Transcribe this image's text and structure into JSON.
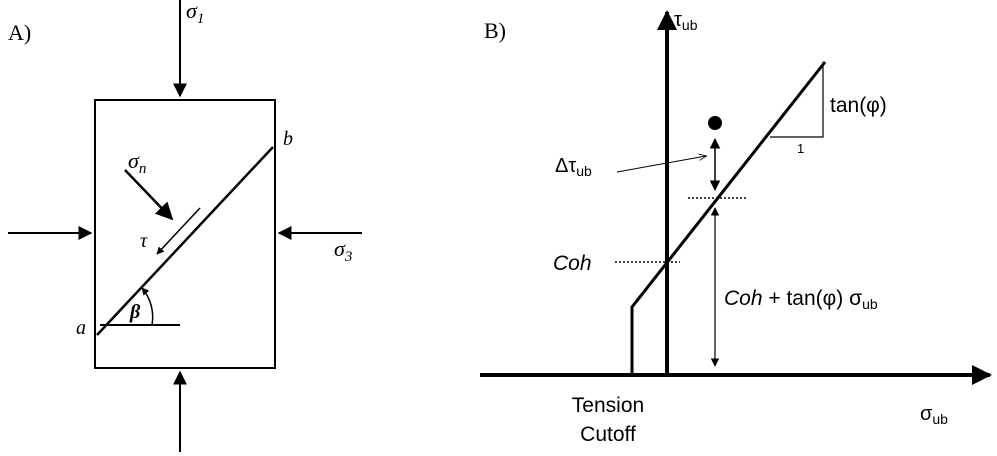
{
  "panel_a": {
    "label": "A)",
    "sigma_1": {
      "symbol": "σ",
      "sub": "1"
    },
    "point_b": "b",
    "sigma_n": {
      "symbol": "σ",
      "sub": "n"
    },
    "tau": "τ",
    "sigma_3": {
      "symbol": "σ",
      "sub": "3"
    },
    "point_a": "a",
    "beta": "β"
  },
  "panel_b": {
    "label": "B)",
    "y_axis": {
      "symbol": "τ",
      "sub": "ub"
    },
    "slope": "tan(φ)",
    "run": "1",
    "delta_tau": {
      "symbol": "Δτ",
      "sub": "ub"
    },
    "coh": "Coh",
    "strength": {
      "coh": "Coh",
      "rest": " + tan(φ) σ",
      "sub": "ub"
    },
    "tension_cutoff": [
      "Tension",
      "Cutoff"
    ],
    "x_axis": {
      "symbol": "σ",
      "sub": "ub"
    }
  }
}
